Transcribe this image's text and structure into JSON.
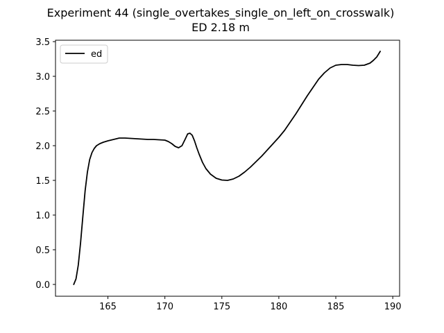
{
  "chart_data": {
    "type": "line",
    "title": "Experiment 44 (single_overtakes_single_on_left_on_crosswalk)",
    "subtitle": "ED 2.18 m",
    "xlabel": "",
    "ylabel": "",
    "xlim": [
      160.4,
      190.6
    ],
    "ylim": [
      -0.17,
      3.52
    ],
    "xticks": [
      165,
      170,
      175,
      180,
      185,
      190
    ],
    "yticks": [
      0.0,
      0.5,
      1.0,
      1.5,
      2.0,
      2.5,
      3.0,
      3.5
    ],
    "xtick_labels": [
      "165",
      "170",
      "175",
      "180",
      "185",
      "190"
    ],
    "ytick_labels": [
      "0.0",
      "0.5",
      "1.0",
      "1.5",
      "2.0",
      "2.5",
      "3.0",
      "3.5"
    ],
    "grid": false,
    "legend_position": "top-left",
    "series": [
      {
        "name": "ed",
        "color": "#000000",
        "x": [
          162.0,
          162.2,
          162.4,
          162.6,
          162.8,
          163.0,
          163.2,
          163.4,
          163.6,
          163.8,
          164.0,
          164.3,
          164.6,
          165.0,
          165.5,
          166.0,
          166.5,
          167.0,
          167.5,
          168.0,
          168.5,
          169.0,
          169.5,
          170.0,
          170.3,
          170.6,
          170.9,
          171.2,
          171.5,
          171.8,
          172.0,
          172.2,
          172.4,
          172.6,
          172.8,
          173.0,
          173.3,
          173.6,
          174.0,
          174.5,
          175.0,
          175.5,
          176.0,
          176.5,
          177.0,
          177.5,
          178.0,
          178.5,
          179.0,
          179.5,
          180.0,
          180.5,
          181.0,
          181.5,
          182.0,
          182.5,
          183.0,
          183.5,
          184.0,
          184.5,
          185.0,
          185.5,
          186.0,
          186.5,
          187.0,
          187.5,
          188.0,
          188.3,
          188.6,
          188.9
        ],
        "y": [
          0.0,
          0.08,
          0.28,
          0.6,
          0.98,
          1.35,
          1.62,
          1.8,
          1.9,
          1.96,
          2.0,
          2.03,
          2.05,
          2.07,
          2.09,
          2.11,
          2.11,
          2.105,
          2.1,
          2.095,
          2.09,
          2.09,
          2.085,
          2.08,
          2.06,
          2.03,
          1.99,
          1.97,
          2.0,
          2.1,
          2.17,
          2.18,
          2.15,
          2.07,
          1.97,
          1.88,
          1.76,
          1.67,
          1.59,
          1.53,
          1.505,
          1.5,
          1.52,
          1.56,
          1.62,
          1.69,
          1.77,
          1.85,
          1.94,
          2.03,
          2.12,
          2.22,
          2.34,
          2.46,
          2.59,
          2.72,
          2.84,
          2.96,
          3.05,
          3.12,
          3.16,
          3.17,
          3.17,
          3.16,
          3.155,
          3.16,
          3.19,
          3.23,
          3.28,
          3.36
        ]
      }
    ]
  }
}
